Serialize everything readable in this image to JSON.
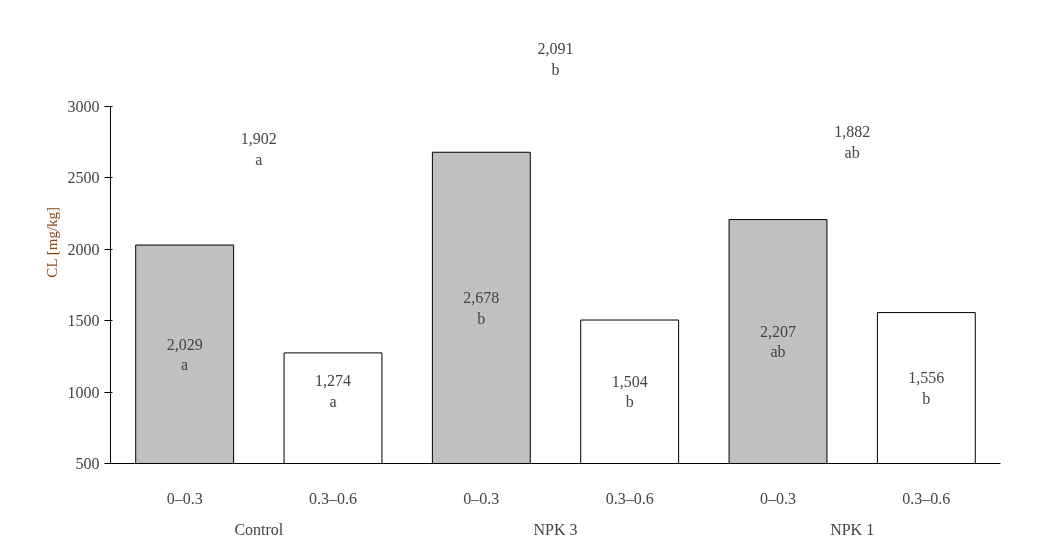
{
  "chart_data": {
    "type": "bar",
    "ylabel": "CL [mg/kg]",
    "categories": [
      "0–0.3",
      "0.3–0.6",
      "0–0.3",
      "0.3–0.6",
      "0–0.3",
      "0.3–0.6"
    ],
    "values": [
      2029,
      1274,
      2678,
      1504,
      2207,
      1556
    ],
    "colors": [
      "#c0c0c0",
      "#ffffff",
      "#c0c0c0",
      "#ffffff",
      "#c0c0c0",
      "#ffffff"
    ],
    "value_labels": [
      "2,029\na",
      "1,274\na",
      "2,678\nb",
      "1,504\nb",
      "2,207\nab",
      "1,556\nb"
    ],
    "ylim": [
      500,
      3000
    ],
    "yticks": [
      500,
      1000,
      1500,
      2000,
      2500,
      3000
    ],
    "grid": false,
    "annotations": [
      "1,902\na",
      "2,091\nb",
      "1,882\nab",
      "Control",
      "NPK 3",
      "NPK 1"
    ]
  }
}
